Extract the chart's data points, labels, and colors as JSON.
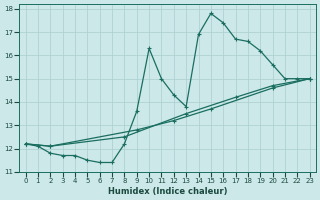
{
  "xlabel": "Humidex (Indice chaleur)",
  "xlim": [
    -0.5,
    23.5
  ],
  "ylim": [
    11,
    18.2
  ],
  "yticks": [
    11,
    12,
    13,
    14,
    15,
    16,
    17,
    18
  ],
  "xticks": [
    0,
    1,
    2,
    3,
    4,
    5,
    6,
    7,
    8,
    9,
    10,
    11,
    12,
    13,
    14,
    15,
    16,
    17,
    18,
    19,
    20,
    21,
    22,
    23
  ],
  "bg_color": "#cce8e8",
  "grid_color": "#aacece",
  "line_color": "#1a6e60",
  "curve_x": [
    0,
    1,
    2,
    3,
    4,
    5,
    6,
    7,
    8,
    9,
    10,
    11,
    12,
    13,
    14,
    15,
    16,
    17,
    18,
    19,
    20,
    21,
    22,
    23
  ],
  "curve_y": [
    12.2,
    12.1,
    11.8,
    11.7,
    11.7,
    11.5,
    11.4,
    11.4,
    12.2,
    13.6,
    16.3,
    15.0,
    14.3,
    13.8,
    16.9,
    17.8,
    17.4,
    16.7,
    16.6,
    16.2,
    15.6,
    15.0,
    15.0,
    15.0
  ],
  "line2_x": [
    0,
    2,
    9,
    12,
    15,
    20,
    23
  ],
  "line2_y": [
    12.2,
    12.1,
    12.8,
    13.2,
    13.7,
    14.6,
    15.0
  ],
  "line3_x": [
    0,
    2,
    8,
    13,
    17,
    20,
    23
  ],
  "line3_y": [
    12.2,
    12.1,
    12.5,
    13.5,
    14.2,
    14.7,
    15.0
  ]
}
